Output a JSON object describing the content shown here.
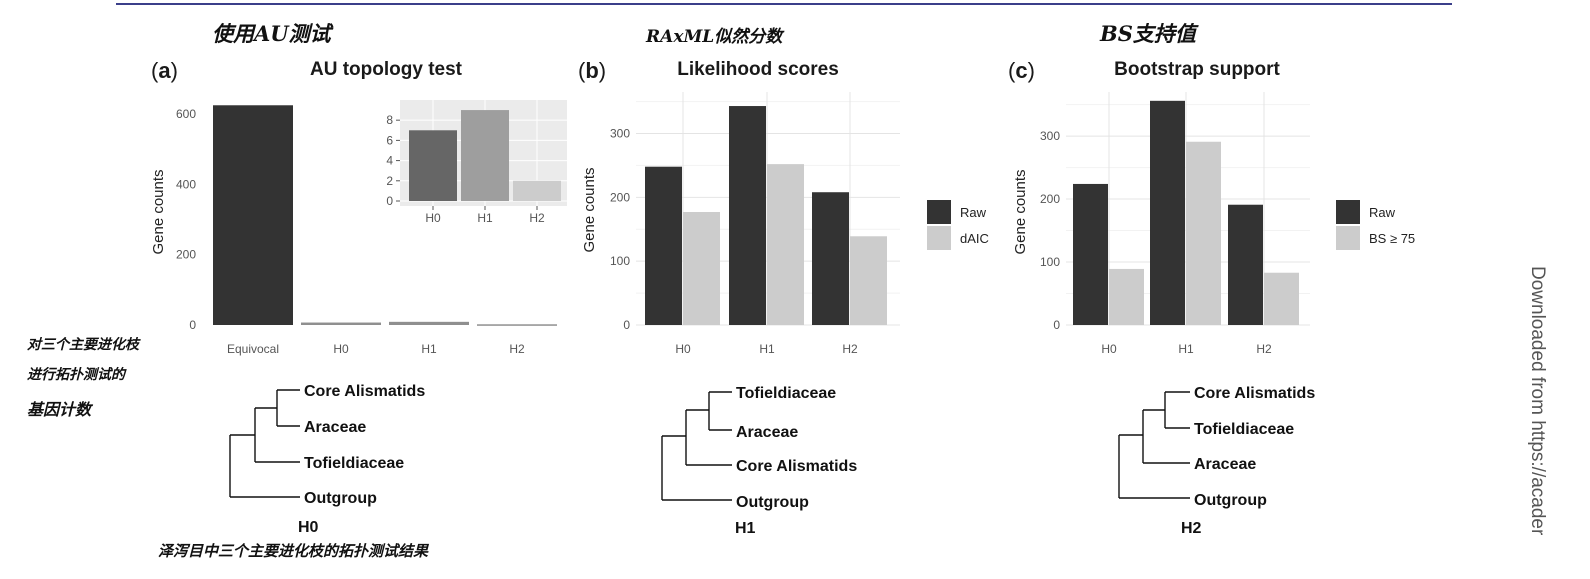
{
  "annotations": {
    "note_a": "使用AU测试",
    "note_b": "RAxML似然分数",
    "note_c": "BS支持值",
    "note_left": [
      "对三个主要进化枝",
      "进行拓扑测试的",
      "基因计数"
    ],
    "note_bottom": "泽泻目中三个主要进化枝的拓扑测试结果"
  },
  "side_text": "Downloaded from https://acader",
  "panel_labels": {
    "a": "a",
    "b": "b",
    "c": "c"
  },
  "colors": {
    "raw": "#333333",
    "filtered": "#cccccc",
    "inset_bg": "#ebebeb",
    "rule": "#3b3f8a"
  },
  "chart_data": [
    {
      "type": "bar",
      "title": "AU topology test",
      "ylabel": "Gene counts",
      "categories": [
        "Equivocal",
        "H0",
        "H1",
        "H2"
      ],
      "values": [
        625,
        7,
        9,
        2
      ],
      "ylim": [
        0,
        640
      ],
      "yticks": [
        0,
        200,
        400,
        600
      ],
      "grid": false,
      "inset": {
        "type": "bar",
        "categories": [
          "H0",
          "H1",
          "H2"
        ],
        "values": [
          7,
          9,
          2
        ],
        "ylim": [
          0,
          9.7
        ],
        "yticks": [
          0,
          2,
          4,
          6,
          8
        ],
        "colors": [
          "#666666",
          "#9e9e9e",
          "#cccccc"
        ],
        "grid": true
      }
    },
    {
      "type": "bar",
      "title": "Likelihood scores",
      "ylabel": "Gene counts",
      "categories": [
        "H0",
        "H1",
        "H2"
      ],
      "series": [
        {
          "name": "Raw",
          "values": [
            248,
            343,
            208
          ]
        },
        {
          "name": "dAIC",
          "values": [
            177,
            252,
            139
          ]
        }
      ],
      "ylim": [
        0,
        365
      ],
      "yticks": [
        0,
        100,
        200,
        300
      ],
      "grid": true,
      "legend": "right"
    },
    {
      "type": "bar",
      "title": "Bootstrap support",
      "ylabel": "Gene counts",
      "categories": [
        "H0",
        "H1",
        "H2"
      ],
      "series": [
        {
          "name": "Raw",
          "values": [
            224,
            356,
            191
          ]
        },
        {
          "name": "BS ≥ 75",
          "values": [
            89,
            291,
            83
          ]
        }
      ],
      "ylim": [
        0,
        370
      ],
      "yticks": [
        0,
        100,
        200,
        300
      ],
      "grid": true,
      "legend": "right"
    }
  ],
  "trees": [
    {
      "name": "H0",
      "taxa": [
        "Core Alismatids",
        "Araceae",
        "Tofieldiaceae",
        "Outgroup"
      ]
    },
    {
      "name": "H1",
      "taxa": [
        "Tofieldiaceae",
        "Araceae",
        "Core Alismatids",
        "Outgroup"
      ]
    },
    {
      "name": "H2",
      "taxa": [
        "Core Alismatids",
        "Tofieldiaceae",
        "Araceae",
        "Outgroup"
      ]
    }
  ]
}
